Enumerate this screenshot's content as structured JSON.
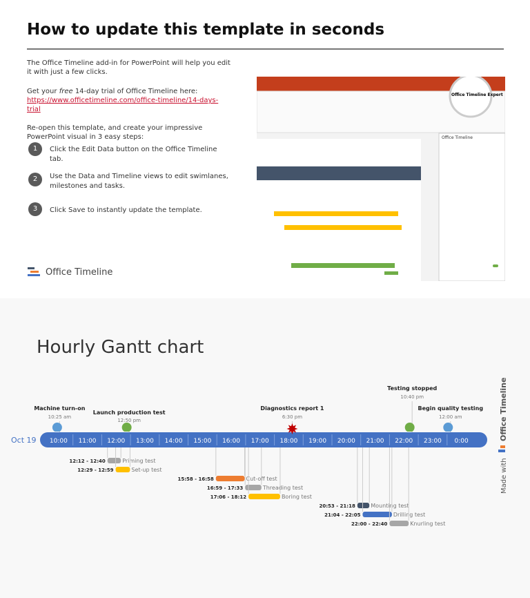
{
  "header": {
    "title": "How to update this template in seconds"
  },
  "intro": "The Office Timeline add-in for PowerPoint will help you edit it with just a few clicks.",
  "trial": {
    "prefix": "Get your",
    "emph": "free",
    "suffix": "14-day trial of Office Timeline here:",
    "link": "https://www.officetimeline.com/office-timeline/14-days-trial"
  },
  "reopen": "Re-open this template, and create your impressive PowerPoint visual in 3 easy steps:",
  "steps": [
    {
      "number": "1",
      "text": "Click the Edit Data button on the Office Timeline tab."
    },
    {
      "number": "2",
      "text": "Use the Data and Timeline views to edit swimlanes, milestones and tasks."
    },
    {
      "number": "3",
      "text": "Click Save to instantly update the template."
    }
  ],
  "logo": "Office Timeline",
  "screenshot": {
    "tab": "Office Timeline Expert",
    "panel": "Office Timeline"
  },
  "gantt": {
    "title": "Hourly Gantt chart",
    "date": "Oct 19",
    "hours": [
      "10:00",
      "11:00",
      "12:00",
      "13:00",
      "14:00",
      "15:00",
      "16:00",
      "17:00",
      "18:00",
      "19:00",
      "20:00",
      "21:00",
      "22:00",
      "23:00",
      "0:00"
    ],
    "milestones": [
      {
        "name": "Machine turn-on",
        "time": "10:25 am",
        "color": "#5b9bd5"
      },
      {
        "name": "Launch production test",
        "time": "12:50 pm",
        "color": "#70ad47"
      },
      {
        "name": "Diagnostics report 1",
        "time": "6:30 pm",
        "color": "#c00000"
      },
      {
        "name": "Testing stopped",
        "time": "10:40 pm",
        "color": "#70ad47"
      },
      {
        "name": "Begin quality testing",
        "time": "12:00 am",
        "color": "#5b9bd5"
      }
    ],
    "tasks": [
      {
        "name": "Priming test",
        "time": "12:12 - 12:40",
        "color": "#a6a6a6"
      },
      {
        "name": "Set-up test",
        "time": "12:29 - 12:59",
        "color": "#ffc000"
      },
      {
        "name": "Cut-off test",
        "time": "15:58 - 16:58",
        "color": "#ed7d31"
      },
      {
        "name": "Threading test",
        "time": "16:59 - 17:33",
        "color": "#a6a6a6"
      },
      {
        "name": "Boring test",
        "time": "17:06 - 18:12",
        "color": "#ffc000"
      },
      {
        "name": "Mounting test",
        "time": "20:53 - 21:18",
        "color": "#44546a"
      },
      {
        "name": "Drilling test",
        "time": "21:04 - 22:05",
        "color": "#4472c4"
      },
      {
        "name": "Knurling test",
        "time": "22:00 - 22:40",
        "color": "#a6a6a6"
      }
    ],
    "made_with": "Made with",
    "brand": "Office Timeline"
  }
}
